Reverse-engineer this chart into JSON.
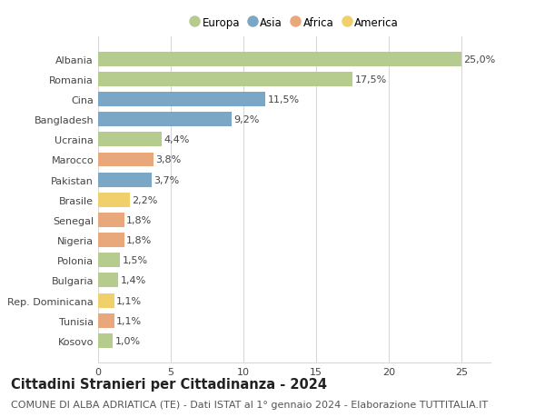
{
  "categories": [
    "Albania",
    "Romania",
    "Cina",
    "Bangladesh",
    "Ucraina",
    "Marocco",
    "Pakistan",
    "Brasile",
    "Senegal",
    "Nigeria",
    "Polonia",
    "Bulgaria",
    "Rep. Dominicana",
    "Tunisia",
    "Kosovo"
  ],
  "values": [
    25.0,
    17.5,
    11.5,
    9.2,
    4.4,
    3.8,
    3.7,
    2.2,
    1.8,
    1.8,
    1.5,
    1.4,
    1.1,
    1.1,
    1.0
  ],
  "labels": [
    "25,0%",
    "17,5%",
    "11,5%",
    "9,2%",
    "4,4%",
    "3,8%",
    "3,7%",
    "2,2%",
    "1,8%",
    "1,8%",
    "1,5%",
    "1,4%",
    "1,1%",
    "1,1%",
    "1,0%"
  ],
  "continents": [
    "Europa",
    "Europa",
    "Asia",
    "Asia",
    "Europa",
    "Africa",
    "Asia",
    "America",
    "Africa",
    "Africa",
    "Europa",
    "Europa",
    "America",
    "Africa",
    "Europa"
  ],
  "colors": {
    "Europa": "#b5cc8e",
    "Asia": "#7ba7c7",
    "Africa": "#e8a87c",
    "America": "#f0d06a"
  },
  "legend_order": [
    "Europa",
    "Asia",
    "Africa",
    "America"
  ],
  "title": "Cittadini Stranieri per Cittadinanza - 2024",
  "subtitle": "COMUNE DI ALBA ADRIATICA (TE) - Dati ISTAT al 1° gennaio 2024 - Elaborazione TUTTITALIA.IT",
  "xlim": [
    0,
    27
  ],
  "xticks": [
    0,
    5,
    10,
    15,
    20,
    25
  ],
  "background_color": "#ffffff",
  "grid_color": "#d8d8d8",
  "bar_height": 0.72,
  "title_fontsize": 10.5,
  "subtitle_fontsize": 8,
  "label_fontsize": 8,
  "tick_fontsize": 8,
  "legend_fontsize": 8.5
}
